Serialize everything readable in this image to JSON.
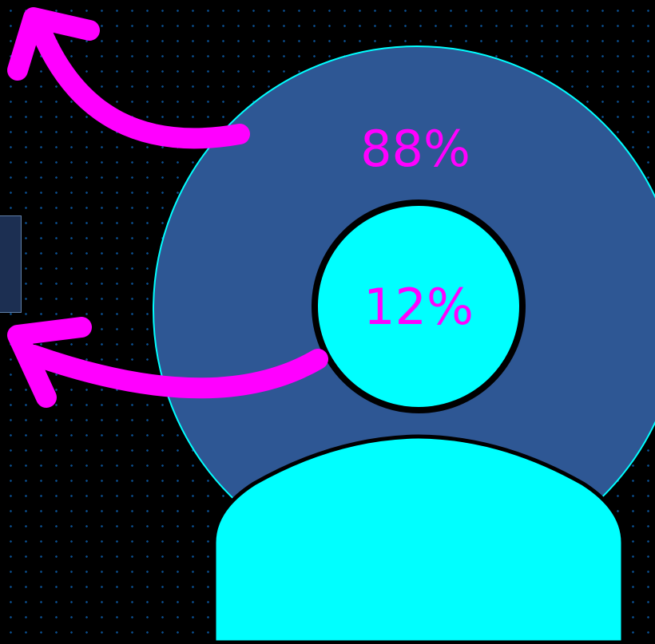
{
  "colors": {
    "background": "#000000",
    "grid_dot": "#0b4f8f",
    "outer_circle": "#2e5794",
    "outer_circle_stroke": "#00ffff",
    "inner_circle": "#00ffff",
    "person_body": "#00ffff",
    "arrow": "#ff00ff",
    "label_text": "#ff00ff"
  },
  "labels": {
    "outer_percent": "88%",
    "inner_percent": "12%"
  },
  "icons": {
    "person": "person-silhouette-icon",
    "arrow_top": "curved-arrow-up-left-icon",
    "arrow_bottom": "curved-arrow-left-icon"
  }
}
